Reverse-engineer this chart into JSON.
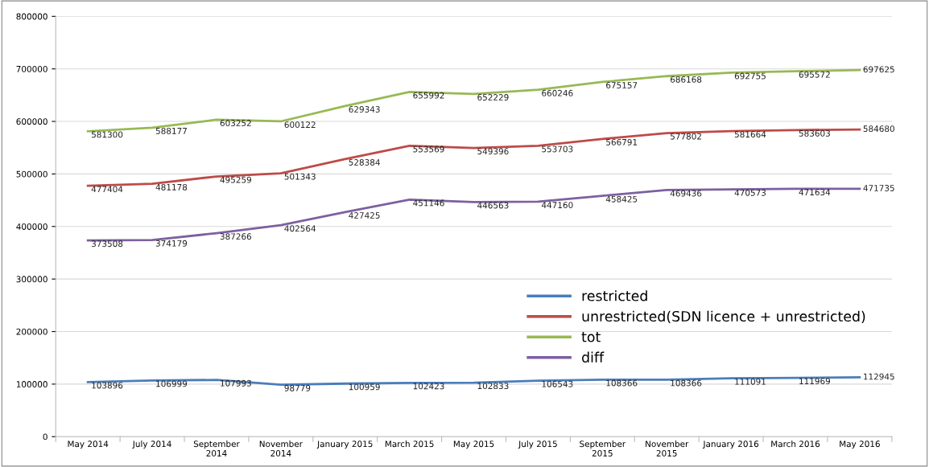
{
  "chart_data": {
    "type": "line",
    "categories": [
      "May 2014",
      "July 2014",
      "September\n2014",
      "November\n2014",
      "January 2015",
      "March 2015",
      "May 2015",
      "July 2015",
      "September\n2015",
      "November\n2015",
      "January 2016",
      "March 2016",
      "May 2016"
    ],
    "series": [
      {
        "name": "restricted",
        "color": "#4a7ebb",
        "values": [
          103896,
          106999,
          107993,
          98779,
          100959,
          102423,
          102833,
          106543,
          108366,
          108366,
          111091,
          111969,
          112945
        ]
      },
      {
        "name": "unrestricted(SDN licence + unrestricted)",
        "color": "#be4b48",
        "values": [
          477404,
          481178,
          495259,
          501343,
          528384,
          553569,
          549396,
          553703,
          566791,
          577802,
          581664,
          583603,
          584680
        ]
      },
      {
        "name": "tot",
        "color": "#98b954",
        "values": [
          581300,
          588177,
          603252,
          600122,
          629343,
          655992,
          652229,
          660246,
          675157,
          686168,
          692755,
          695572,
          697625
        ]
      },
      {
        "name": "diff",
        "color": "#7d60a0",
        "values": [
          373508,
          374179,
          387266,
          402564,
          427425,
          451146,
          446563,
          447160,
          458425,
          469436,
          470573,
          471634,
          471735
        ]
      }
    ],
    "ylim": [
      0,
      800000
    ],
    "yticks": [
      0,
      100000,
      200000,
      300000,
      400000,
      500000,
      600000,
      700000,
      800000
    ],
    "grid": "y",
    "legend": "center right",
    "data_labels": true,
    "marker": "none",
    "line_style": "solid"
  }
}
